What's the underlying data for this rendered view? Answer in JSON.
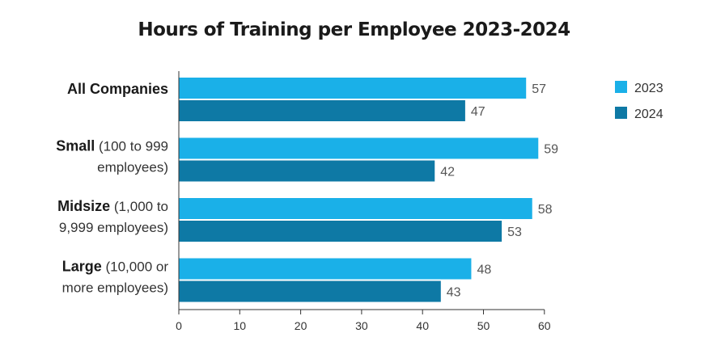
{
  "chart_data": {
    "type": "bar",
    "orientation": "horizontal",
    "title": "Hours of Training per Employee 2023-2024",
    "categories": [
      {
        "main": "All Companies",
        "sub": "",
        "lines": [
          {
            "bold": "All Companies",
            "rest": ""
          }
        ]
      },
      {
        "main": "Small",
        "sub": "(100 to 999 employees)",
        "lines": [
          {
            "bold": "Small",
            "rest": " (100 to 999"
          },
          {
            "bold": "",
            "rest": "employees)"
          }
        ]
      },
      {
        "main": "Midsize",
        "sub": "(1,000 to 9,999 employees)",
        "lines": [
          {
            "bold": "Midsize",
            "rest": " (1,000 to"
          },
          {
            "bold": "",
            "rest": "9,999 employees)"
          }
        ]
      },
      {
        "main": "Large",
        "sub": "(10,000 or more employees)",
        "lines": [
          {
            "bold": "Large",
            "rest": " (10,000 or"
          },
          {
            "bold": "",
            "rest": "more employees)"
          }
        ]
      }
    ],
    "series": [
      {
        "name": "2023",
        "color": "#1ab0e8",
        "values": [
          57,
          59,
          58,
          48
        ]
      },
      {
        "name": "2024",
        "color": "#0e79a5",
        "values": [
          47,
          42,
          53,
          43
        ]
      }
    ],
    "xlim": [
      0,
      60
    ],
    "xticks": [
      0,
      10,
      20,
      30,
      40,
      50,
      60
    ],
    "xlabel": "",
    "ylabel": "",
    "grid": false,
    "legend_position": "top-right"
  }
}
